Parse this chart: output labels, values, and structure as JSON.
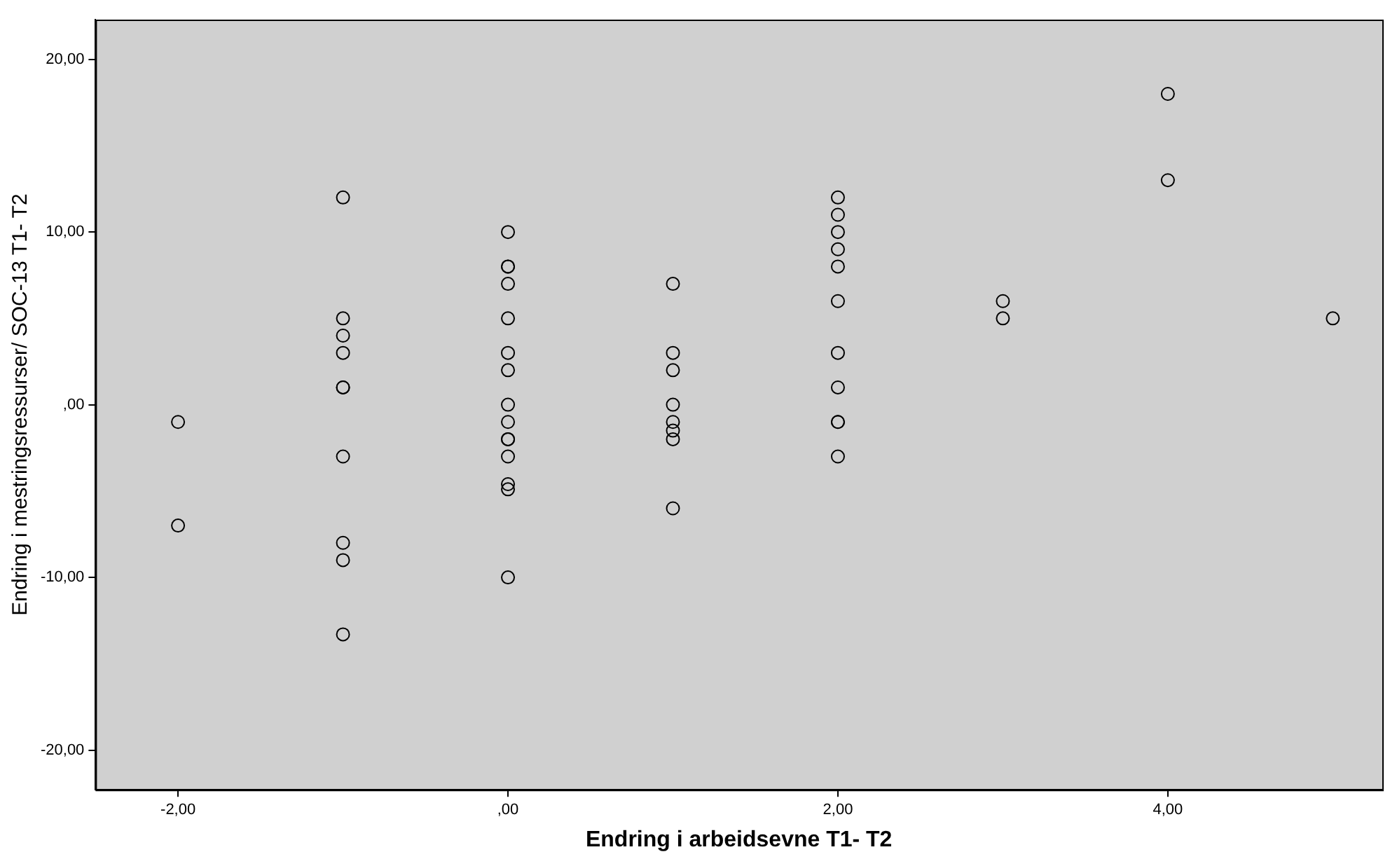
{
  "chart_data": {
    "type": "scatter",
    "xlabel": "Endring i arbeidsevne T1- T2",
    "ylabel": "Endring i mestringsressurser/ SOC-13 T1- T2",
    "series": [
      {
        "color": "#000000",
        "x": [
          -2,
          -2,
          -1,
          -1,
          -1,
          -1,
          -1,
          -1,
          -1,
          -1,
          -1,
          -1,
          0,
          0,
          0,
          0,
          0,
          0,
          0,
          0,
          0,
          0,
          0,
          0,
          0,
          0,
          0,
          1,
          1,
          1,
          1,
          1,
          1,
          1,
          1,
          2,
          2,
          2,
          2,
          2,
          2,
          2,
          2,
          2,
          2,
          2,
          3,
          3,
          4,
          4,
          5
        ],
        "values": [
          -1,
          -7,
          12,
          5,
          4,
          3,
          1,
          1,
          -3,
          -8,
          -9,
          -13.3,
          10,
          8,
          8,
          7,
          5,
          3,
          2,
          0,
          -1,
          -2,
          -2,
          -3,
          -4.6,
          -4.9,
          -10,
          7,
          3,
          2,
          0,
          -1,
          -1.5,
          -2,
          -6,
          12,
          11,
          10,
          9,
          8,
          6,
          3,
          1,
          -1,
          -1,
          -3,
          6,
          5,
          18,
          13,
          5
        ]
      }
    ],
    "xlim": [
      -2.5,
      5.3
    ],
    "ylim": [
      -22.3,
      22.3
    ],
    "xticks": [
      {
        "value": -2,
        "label": "-2,00"
      },
      {
        "value": 0,
        "label": ",00"
      },
      {
        "value": 2,
        "label": "2,00"
      },
      {
        "value": 4,
        "label": "4,00"
      }
    ],
    "yticks": [
      {
        "value": -20,
        "label": "-20,00"
      },
      {
        "value": -10,
        "label": "-10,00"
      },
      {
        "value": 0,
        "label": ",00"
      },
      {
        "value": 10,
        "label": "10,00"
      },
      {
        "value": 20,
        "label": "20,00"
      }
    ],
    "marker": "circle",
    "grid": false,
    "legend": false
  }
}
